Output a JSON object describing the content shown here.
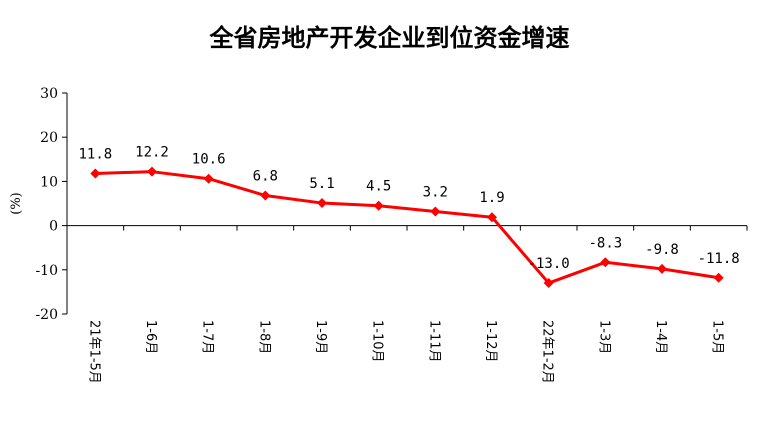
{
  "chart_data": {
    "type": "line",
    "title": "全省房地产开发企业到位资金增速",
    "ylabel": "(%)",
    "xlabel": "",
    "ylim": [
      -20,
      30
    ],
    "yticks": [
      "30",
      "20",
      "10",
      "0",
      "-10",
      "-20"
    ],
    "categories": [
      "21年1-5月",
      "1-6月",
      "1-7月",
      "1-8月",
      "1-9月",
      "1-10月",
      "1-11月",
      "1-12月",
      "22年1-2月",
      "1-3月",
      "1-4月",
      "1-5月"
    ],
    "series": [
      {
        "values": [
          11.8,
          12.2,
          10.6,
          6.8,
          5.1,
          4.5,
          3.2,
          1.9,
          -13.0,
          -8.3,
          -9.8,
          -11.8
        ],
        "labels": [
          "11.8",
          "12.2",
          "10.6",
          "6.8",
          "5.1",
          "4.5",
          "3.2",
          "1.9",
          "-13.0",
          "-8.3",
          "-9.8",
          "-11.8"
        ],
        "color": "#ff0000"
      }
    ],
    "grid": false,
    "legend": "none"
  }
}
